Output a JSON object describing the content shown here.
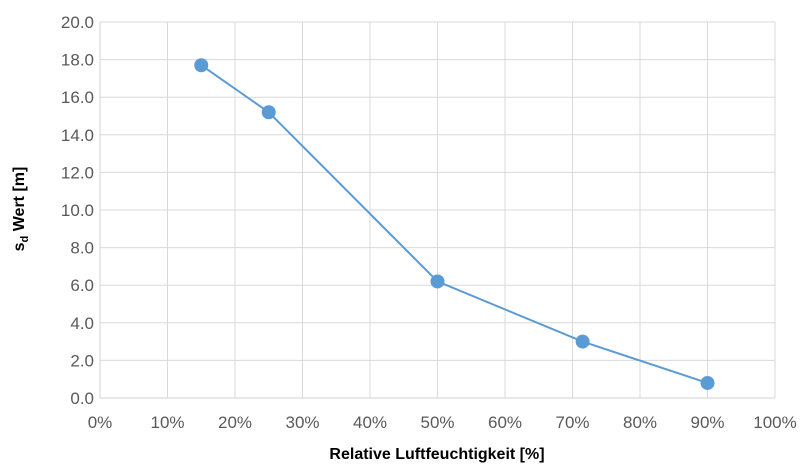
{
  "chart_data": {
    "type": "line",
    "title": "",
    "xlabel": "Relative Luftfeuchtigkeit [%]",
    "ylabel_main": "s",
    "ylabel_sub": "d",
    "ylabel_rest": " Wert [m]",
    "xlim": [
      0,
      100
    ],
    "ylim": [
      0,
      20
    ],
    "x_ticks": [
      0,
      10,
      20,
      30,
      40,
      50,
      60,
      70,
      80,
      90,
      100
    ],
    "x_tick_labels": [
      "0%",
      "10%",
      "20%",
      "30%",
      "40%",
      "50%",
      "60%",
      "70%",
      "80%",
      "90%",
      "100%"
    ],
    "y_ticks": [
      0,
      2,
      4,
      6,
      8,
      10,
      12,
      14,
      16,
      18,
      20
    ],
    "y_tick_labels": [
      "0.0",
      "2.0",
      "4.0",
      "6.0",
      "8.0",
      "10.0",
      "12.0",
      "14.0",
      "16.0",
      "18.0",
      "20.0"
    ],
    "grid": true,
    "legend": "none",
    "series": [
      {
        "x": [
          15,
          25,
          50,
          71.5,
          90
        ],
        "y": [
          17.7,
          15.2,
          6.2,
          3.0,
          0.8
        ],
        "color": "#5b9bd5"
      }
    ],
    "colors": {
      "grid": "#d9d9d9",
      "line": "#5b9bd5",
      "marker": "#5b9bd5"
    }
  }
}
